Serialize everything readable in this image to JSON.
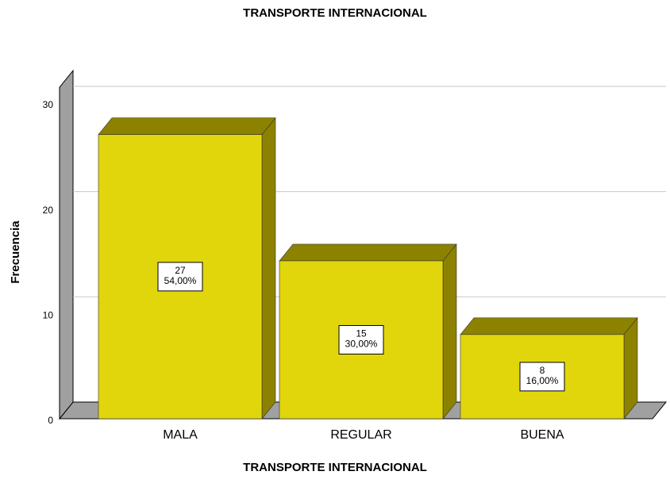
{
  "chart_data": {
    "type": "bar3d",
    "title": "TRANSPORTE INTERNACIONAL",
    "x_label": "TRANSPORTE INTERNACIONAL",
    "y_label": "Frecuencia",
    "categories": [
      "MALA",
      "REGULAR",
      "BUENA"
    ],
    "values": [
      27,
      15,
      8
    ],
    "percentages": [
      54,
      30,
      16
    ],
    "percentage_labels": [
      "54,00%",
      "30,00%",
      "16,00%"
    ],
    "color": "#e1d60c",
    "shade_color": "#8c8200",
    "ylim": [
      0,
      31.5
    ],
    "yticks": [
      0,
      10,
      20,
      30
    ],
    "grid": true
  }
}
